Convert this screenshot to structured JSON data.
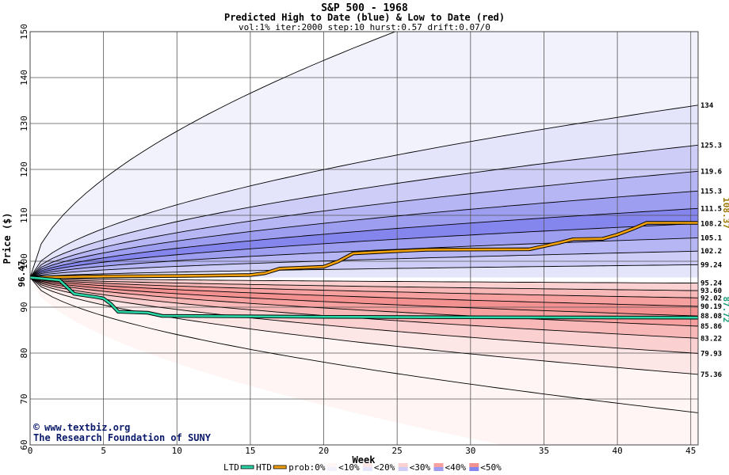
{
  "chart_data": {
    "type": "area",
    "title": "S&P 500 - 1968",
    "subtitle": "Predicted High to Date (blue) &  Low to Date (red)",
    "params": "vol:1% iter:2000 step:10 hurst:0.57 drift:0.07/0",
    "xlabel": "Week",
    "ylabel": "Price ($)",
    "xlim": [
      0,
      45.5
    ],
    "ylim": [
      60,
      150
    ],
    "xticks": [
      0,
      5,
      10,
      15,
      20,
      25,
      30,
      35,
      40,
      45
    ],
    "yticks": [
      60,
      70,
      80,
      90,
      100,
      110,
      120,
      130,
      140,
      150
    ],
    "grid": true,
    "start_value": 96.47,
    "start_label": "96.47",
    "end_htd_label": "108.37",
    "end_ltd_label": "87.72",
    "percentile_labels": [
      "134",
      "125.3",
      "119.6",
      "115.3",
      "111.5",
      "108.2",
      "105.1",
      "102.2",
      "99.24",
      "95.24",
      "93.60",
      "92.02",
      "90.19",
      "88.08",
      "85.86",
      "83.22",
      "79.93",
      "75.36"
    ],
    "high_bands": [
      {
        "end": 172,
        "color": "#f2f2fd"
      },
      {
        "end": 134,
        "color": "#e4e4fb"
      },
      {
        "end": 125.3,
        "color": "#cdcdf8"
      },
      {
        "end": 119.6,
        "color": "#b6b6f5"
      },
      {
        "end": 115.3,
        "color": "#9e9ef1"
      },
      {
        "end": 111.5,
        "color": "#8585ee"
      },
      {
        "end": 108.2,
        "color": "#9e9ef1"
      },
      {
        "end": 105.1,
        "color": "#b6b6f5"
      },
      {
        "end": 102.2,
        "color": "#cdcdf8"
      },
      {
        "end": 99.24,
        "color": "#e4e4fb"
      }
    ],
    "low_bands": [
      {
        "end": 95.24,
        "color": "#fde6e6"
      },
      {
        "end": 93.6,
        "color": "#fbd0d0"
      },
      {
        "end": 92.02,
        "color": "#f9b8b8"
      },
      {
        "end": 90.19,
        "color": "#f6a0a0"
      },
      {
        "end": 88.08,
        "color": "#f39090"
      },
      {
        "end": 85.86,
        "color": "#f6a0a0"
      },
      {
        "end": 83.22,
        "color": "#f9b8b8"
      },
      {
        "end": 79.93,
        "color": "#fbd0d0"
      },
      {
        "end": 75.36,
        "color": "#fde6e6"
      },
      {
        "end": 52,
        "color": "#fff5f5"
      }
    ],
    "htd": [
      [
        0,
        96.47
      ],
      [
        5,
        96.7
      ],
      [
        10,
        96.8
      ],
      [
        15,
        97.0
      ],
      [
        16,
        97.4
      ],
      [
        17,
        98.4
      ],
      [
        20,
        98.8
      ],
      [
        21,
        100.0
      ],
      [
        22,
        101.7
      ],
      [
        25,
        102.2
      ],
      [
        27,
        102.5
      ],
      [
        34,
        102.6
      ],
      [
        35,
        103.3
      ],
      [
        36,
        104.0
      ],
      [
        37,
        104.8
      ],
      [
        39,
        104.9
      ],
      [
        40,
        105.8
      ],
      [
        41,
        107.0
      ],
      [
        42,
        108.37
      ],
      [
        45.5,
        108.37
      ]
    ],
    "ltd": [
      [
        0,
        96.47
      ],
      [
        2,
        95.9
      ],
      [
        3,
        92.9
      ],
      [
        4.5,
        92.2
      ],
      [
        5,
        91.9
      ],
      [
        5.5,
        90.7
      ],
      [
        6,
        89.0
      ],
      [
        8,
        88.8
      ],
      [
        9,
        88.1
      ],
      [
        20,
        87.9
      ],
      [
        30,
        87.8
      ],
      [
        45.5,
        87.72
      ]
    ],
    "legend": [
      {
        "label": "LTD",
        "type": "line",
        "color": "#2ad7a6"
      },
      {
        "label": "HTD",
        "type": "line",
        "color": "#f3a20f"
      },
      {
        "label": "prob:0%",
        "type": "text"
      },
      {
        "label": "<10%",
        "type": "box",
        "colors": [
          "#fff5f5",
          "#f2f2fd"
        ]
      },
      {
        "label": "<20%",
        "type": "box",
        "colors": [
          "#fde6e6",
          "#e4e4fb"
        ]
      },
      {
        "label": "<30%",
        "type": "box",
        "colors": [
          "#fbd0d0",
          "#cdcdf8"
        ]
      },
      {
        "label": "<40%",
        "type": "box",
        "colors": [
          "#f6a0a0",
          "#9e9ef1"
        ]
      },
      {
        "label": "<50%",
        "type": "box",
        "colors": [
          "#f39090",
          "#8585ee"
        ]
      }
    ],
    "credit_line1": "www.textbiz.org",
    "credit_line2": "The Research Foundation of SUNY",
    "credit_symbol": "©"
  }
}
